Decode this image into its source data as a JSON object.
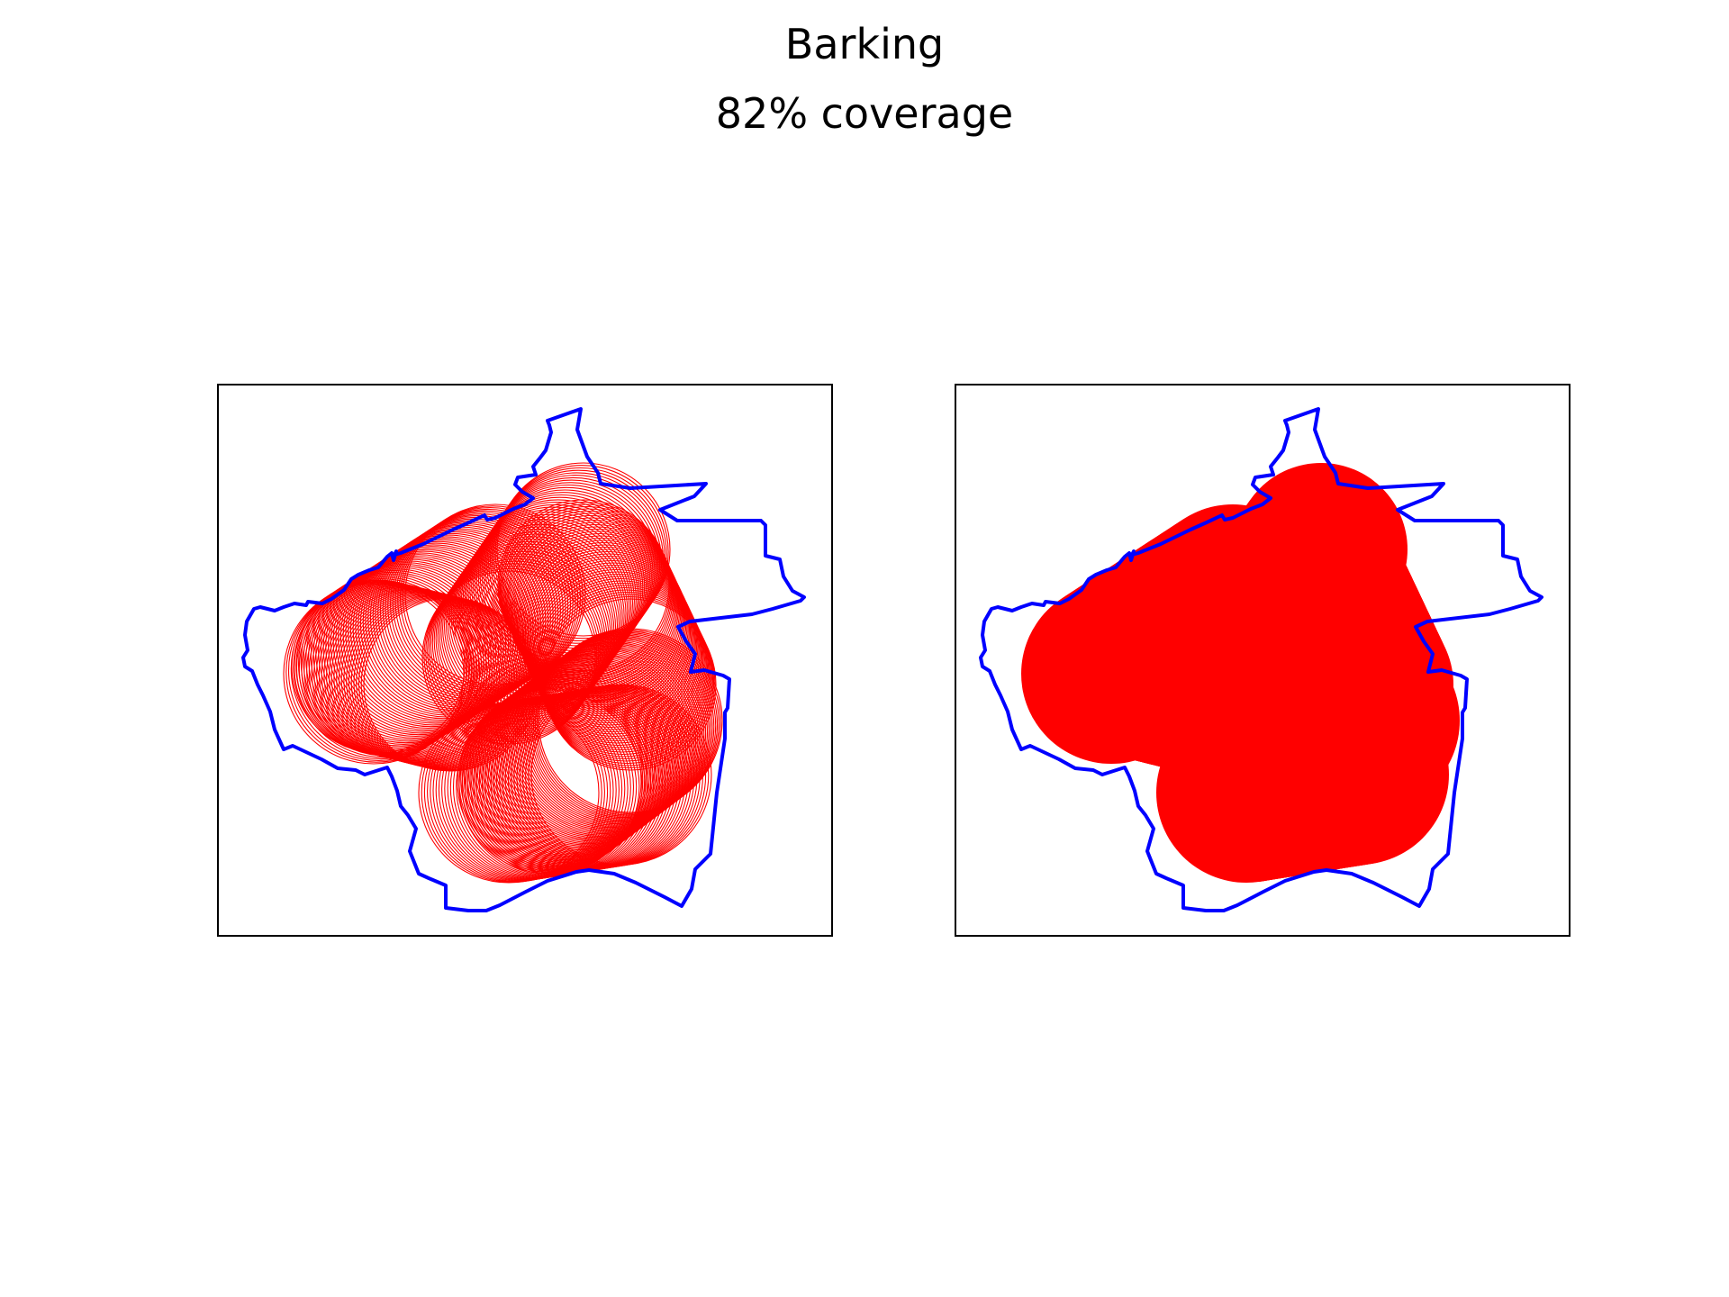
{
  "figure": {
    "title": "Barking",
    "subtitle": "82% coverage"
  },
  "colors": {
    "boundary": "#0000ff",
    "coverage": "#ff0000",
    "frame": "#000000"
  },
  "chart_data": [
    {
      "type": "map",
      "style": "outline-circles",
      "coverage_percent": 82,
      "area_name": "Barking",
      "grid": false
    },
    {
      "type": "map",
      "style": "filled-union",
      "coverage_percent": 82,
      "area_name": "Barking",
      "grid": false
    }
  ]
}
